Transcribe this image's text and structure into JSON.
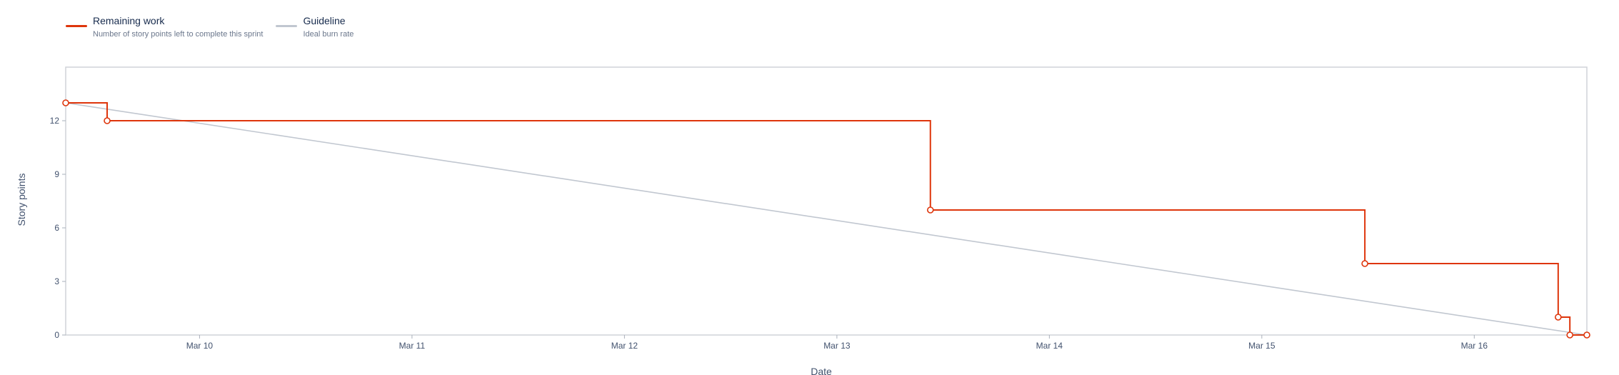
{
  "legend": [
    {
      "label": "Remaining work",
      "description": "Number of story points left to complete this sprint",
      "color": "#de350b"
    },
    {
      "label": "Guideline",
      "description": "Ideal burn rate",
      "color": "#c1c7d0"
    }
  ],
  "chart_data": {
    "type": "line",
    "title": "",
    "xlabel": "Date",
    "ylabel": "Story points",
    "ylim": [
      0,
      15
    ],
    "yticks": [
      0,
      3,
      6,
      9,
      12
    ],
    "xlim": [
      9.37,
      16.53
    ],
    "xticks": [
      {
        "value": 10,
        "label": "Mar 10"
      },
      {
        "value": 11,
        "label": "Mar 11"
      },
      {
        "value": 12,
        "label": "Mar 12"
      },
      {
        "value": 13,
        "label": "Mar 13"
      },
      {
        "value": 14,
        "label": "Mar 14"
      },
      {
        "value": 15,
        "label": "Mar 15"
      },
      {
        "value": 16,
        "label": "Mar 16"
      }
    ],
    "grid": false,
    "legend_position": "top-left",
    "series": [
      {
        "name": "Remaining work",
        "color": "#de350b",
        "step": true,
        "points": [
          {
            "x": 9.37,
            "y": 13
          },
          {
            "x": 9.565,
            "y": 12
          },
          {
            "x": 13.44,
            "y": 7
          },
          {
            "x": 15.485,
            "y": 4
          },
          {
            "x": 16.395,
            "y": 1
          },
          {
            "x": 16.45,
            "y": 0
          },
          {
            "x": 16.53,
            "y": 0
          }
        ]
      },
      {
        "name": "Guideline",
        "color": "#c1c7d0",
        "step": false,
        "points": [
          {
            "x": 9.37,
            "y": 13
          },
          {
            "x": 16.53,
            "y": 0
          }
        ]
      }
    ]
  }
}
